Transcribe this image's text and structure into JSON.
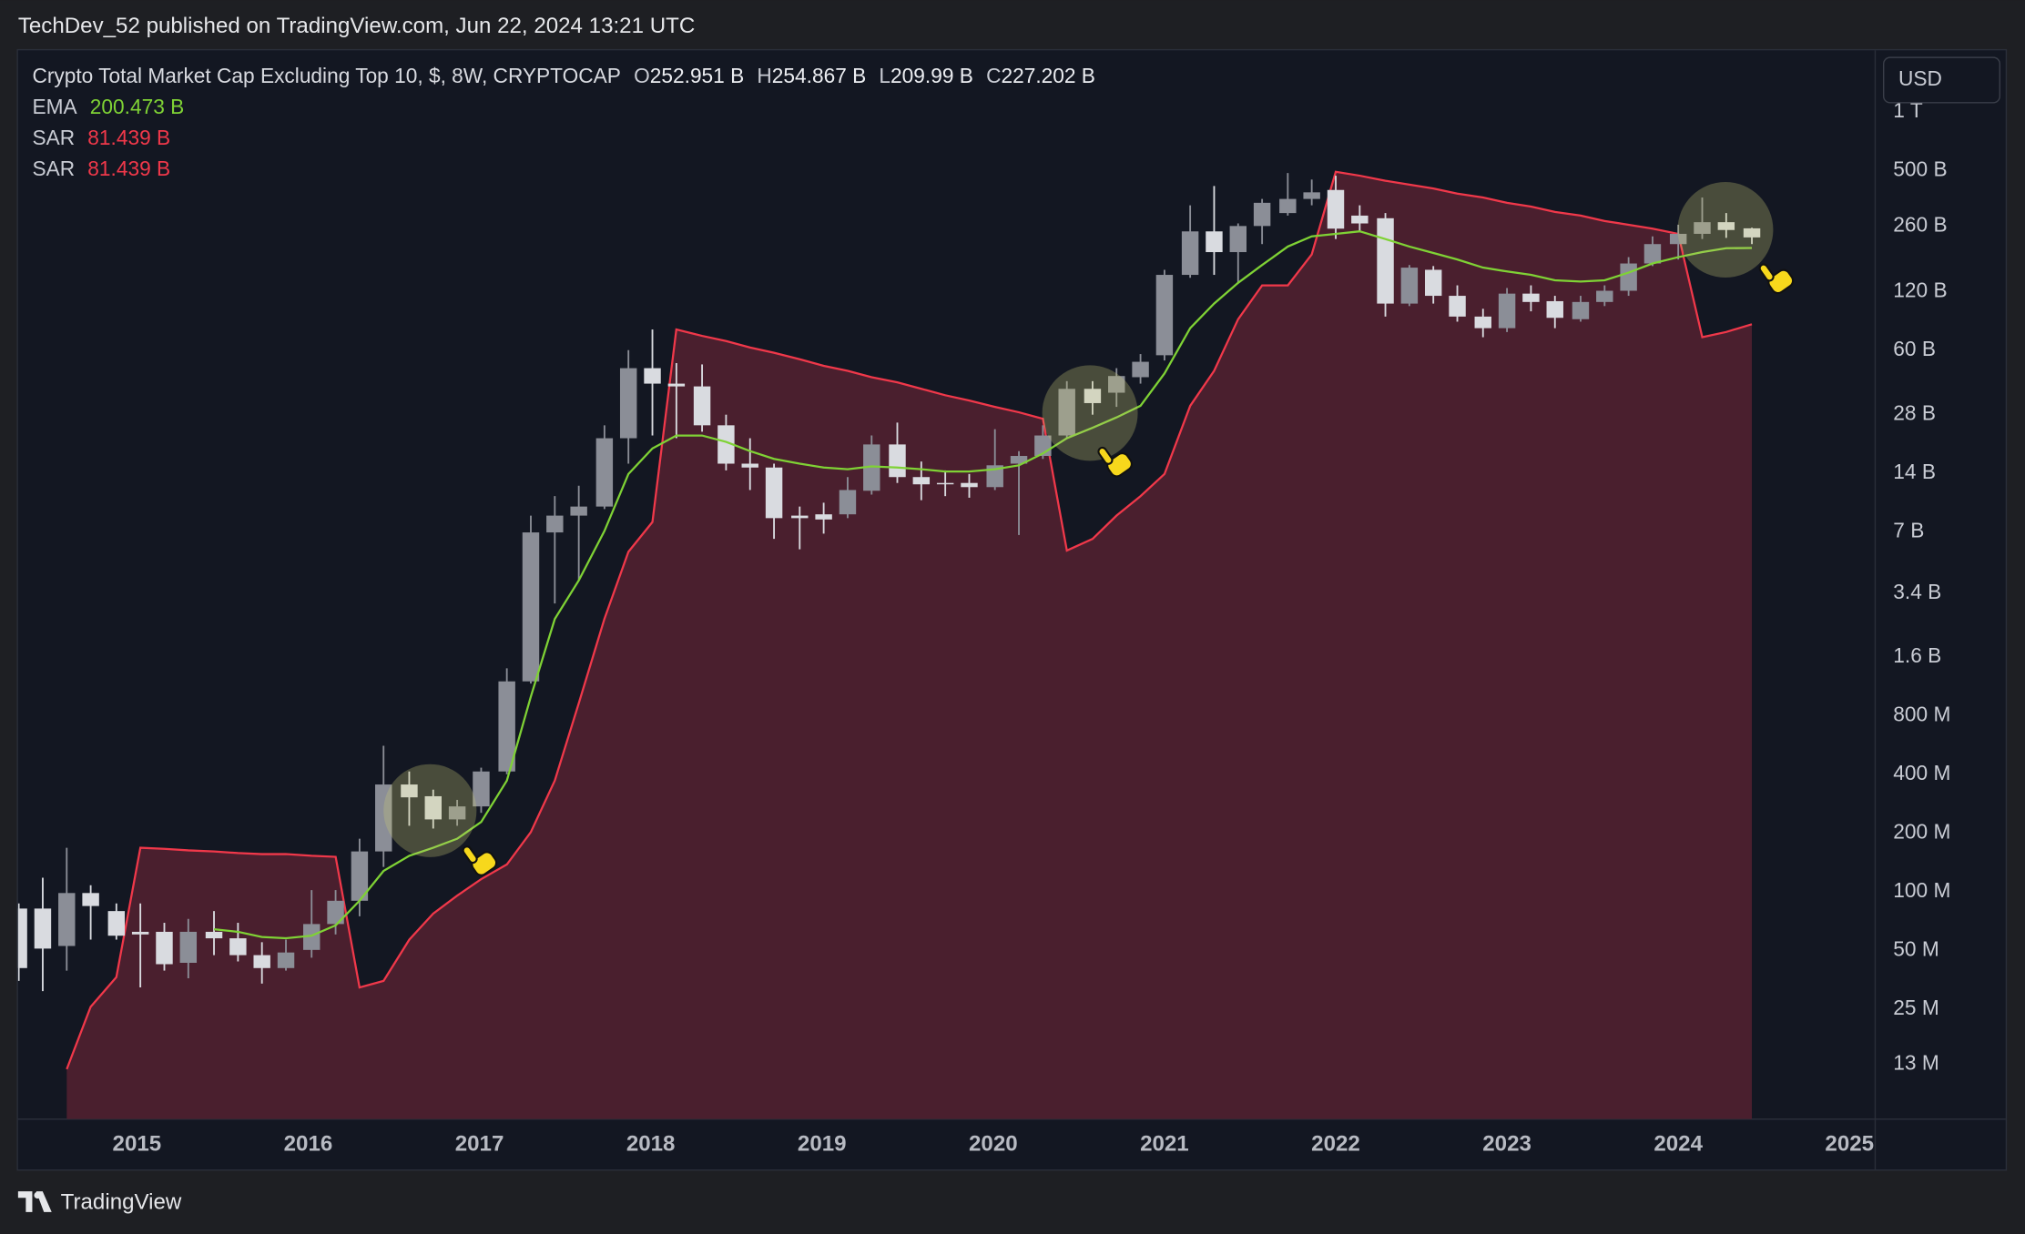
{
  "header": {
    "byline": "TechDev_52 published on TradingView.com, Jun 22, 2024 13:21 UTC",
    "brand": "TradingView"
  },
  "chart_data": {
    "type": "candlestick",
    "title": "Crypto Total Market Cap Excluding Top 10, $, 8W, CRYPTOCAP",
    "currency": "USD",
    "ohlc_keys": [
      "O",
      "H",
      "L",
      "C"
    ],
    "ohlc_value_labels": [
      "252.951 B",
      "254.867 B",
      "209.99 B",
      "227.202 B"
    ],
    "x": [
      2014.31,
      2014.45,
      2014.59,
      2014.73,
      2014.88,
      2015.02,
      2015.16,
      2015.3,
      2015.45,
      2015.59,
      2015.73,
      2015.87,
      2016.02,
      2016.16,
      2016.3,
      2016.44,
      2016.59,
      2016.73,
      2016.87,
      2017.01,
      2017.16,
      2017.3,
      2017.44,
      2017.58,
      2017.73,
      2017.87,
      2018.01,
      2018.15,
      2018.3,
      2018.44,
      2018.58,
      2018.72,
      2018.87,
      2019.01,
      2019.15,
      2019.29,
      2019.44,
      2019.58,
      2019.72,
      2019.86,
      2020.01,
      2020.15,
      2020.29,
      2020.43,
      2020.58,
      2020.72,
      2020.86,
      2021.0,
      2021.15,
      2021.29,
      2021.43,
      2021.57,
      2021.72,
      2021.86,
      2022.0,
      2022.14,
      2022.29,
      2022.43,
      2022.57,
      2022.71,
      2022.86,
      2023.0,
      2023.14,
      2023.28,
      2023.43,
      2023.57,
      2023.71,
      2023.85,
      2024.0,
      2024.14,
      2024.28,
      2024.43
    ],
    "open": [
      82000000.0,
      82000000.0,
      52700000.0,
      98500000.0,
      79600000.0,
      62300000.0,
      62300000.0,
      43200000.0,
      62300000.0,
      57700000.0,
      47300000.0,
      40600000.0,
      50300000.0,
      68300000.0,
      89900000.0,
      161000000.0,
      355000000.0,
      309000000.0,
      235000000.0,
      274000000.0,
      414000000.0,
      1200000000.0,
      6970000000.0,
      8500000000.0,
      9460000000.0,
      21200000000.0,
      48500000000.0,
      40400000000.0,
      39100000000.0,
      24700000000.0,
      15700000000.0,
      15000000000.0,
      8500000000.0,
      8630000000.0,
      8630000000.0,
      11400000000.0,
      19700000000.0,
      13400000000.0,
      12500000000.0,
      12500000000.0,
      11900000000.0,
      15700000000.0,
      17200000000.0,
      21900000000.0,
      38000000000.0,
      36300000000.0,
      43600000000.0,
      56500000000.0,
      146000000000.0,
      244000000000.0,
      191000000000.0,
      260000000000.0,
      303000000000.0,
      358000000000.0,
      398000000000.0,
      294000000000.0,
      285000000000.0,
      104000000000.0,
      155000000000.0,
      114000000000.0,
      89200000000.0,
      77800000000.0,
      117000000000.0,
      107000000000.0,
      86500000000.0,
      106000000000.0,
      121000000000.0,
      167000000000.0,
      210000000000.0,
      237000000000.0,
      272000000000.0,
      252951000000.0
    ],
    "high": [
      87100000.0,
      118000000.0,
      168000000.0,
      108000000.0,
      87100000.0,
      87100000.0,
      69300000.0,
      72600000.0,
      79600000.0,
      69300000.0,
      55100000.0,
      56800000.0,
      102000000.0,
      102000000.0,
      187000000.0,
      561000000.0,
      414000000.0,
      334000000.0,
      296000000.0,
      433000000.0,
      1400000000.0,
      8500000000.0,
      10700000000.0,
      12100000000.0,
      24700000000.0,
      60000000000.0,
      76600000000.0,
      51500000000.0,
      50700000000.0,
      28000000000.0,
      21200000000.0,
      15700000000.0,
      9460000000.0,
      9900000000.0,
      13400000000.0,
      21900000000.0,
      25500000000.0,
      16100000000.0,
      14500000000.0,
      13900000000.0,
      23600000000.0,
      18200000000.0,
      24700000000.0,
      41600000000.0,
      41600000000.0,
      48500000000.0,
      57300000000.0,
      155000000000.0,
      332000000000.0,
      417000000000.0,
      268000000000.0,
      358000000000.0,
      486000000000.0,
      450000000000.0,
      471000000000.0,
      332000000000.0,
      303000000000.0,
      164000000000.0,
      162000000000.0,
      129000000000.0,
      97800000000.0,
      125000000000.0,
      129000000000.0,
      114000000000.0,
      114000000000.0,
      129000000000.0,
      180000000000.0,
      230000000000.0,
      264000000000.0,
      364000000000.0,
      303000000000.0,
      254867000000.0
    ],
    "low": [
      34900000.0,
      30900000.0,
      39400000.0,
      56800000.0,
      56800000.0,
      32300000.0,
      39400000.0,
      36000000.0,
      47300000.0,
      43900000.0,
      33800000.0,
      39400000.0,
      45900000.0,
      60400000.0,
      74800000.0,
      134000000.0,
      218000000.0,
      211000000.0,
      218000000.0,
      254000000.0,
      401000000.0,
      1170000000.0,
      3010000000.0,
      3960000000.0,
      9180000000.0,
      15700000000.0,
      21900000000.0,
      21200000000.0,
      22900000000.0,
      14500000000.0,
      11500000000.0,
      6460000000.0,
      5710000000.0,
      6870000000.0,
      8250000000.0,
      10900000000.0,
      12500000000.0,
      10200000000.0,
      10700000000.0,
      10500000000.0,
      11500000000.0,
      6760000000.0,
      16600000000.0,
      21200000000.0,
      28000000000.0,
      30700000000.0,
      40400000000.0,
      53100000000.0,
      141000000000.0,
      146000000000.0,
      133000000000.0,
      210000000000.0,
      294000000000.0,
      332000000000.0,
      223000000000.0,
      244000000000.0,
      89200000000.0,
      101000000000.0,
      104000000000.0,
      84000000000.0,
      69900000000.0,
      74300000000.0,
      94900000000.0,
      77800000000.0,
      84000000000.0,
      101000000000.0,
      114000000000.0,
      162000000000.0,
      175000000000.0,
      223000000000.0,
      226000000000.0,
      209990000000.0
    ],
    "close": [
      40600000.0,
      51100000.0,
      98500000.0,
      84500000.0,
      59500000.0,
      60400000.0,
      42500000.0,
      62300000.0,
      57700000.0,
      47300000.0,
      40600000.0,
      48800000.0,
      68300000.0,
      89900000.0,
      161000000.0,
      355000000.0,
      305000000.0,
      235000000.0,
      274000000.0,
      414000000.0,
      1200000000.0,
      6970000000.0,
      8500000000.0,
      9460000000.0,
      21200000000.0,
      48500000000.0,
      40400000000.0,
      39100000000.0,
      24700000000.0,
      15700000000.0,
      15000000000.0,
      8250000000.0,
      8250000000.0,
      8120000000.0,
      11500000000.0,
      19700000000.0,
      13400000000.0,
      12300000000.0,
      12300000000.0,
      11900000000.0,
      15400000000.0,
      17200000000.0,
      21900000000.0,
      38000000000.0,
      32100000000.0,
      44200000000.0,
      52300000000.0,
      146000000000.0,
      244000000000.0,
      191000000000.0,
      260000000000.0,
      342000000000.0,
      358000000000.0,
      387000000000.0,
      252000000000.0,
      268000000000.0,
      104000000000.0,
      159000000000.0,
      114000000000.0,
      89200000000.0,
      77800000000.0,
      117000000000.0,
      106000000000.0,
      87900000000.0,
      106000000000.0,
      121000000000.0,
      167000000000.0,
      210000000000.0,
      237000000000.0,
      272000000000.0,
      248000000000.0,
      227202000000.0
    ],
    "up_color": "#8b8e97",
    "down_color": "#d9dbe0",
    "overlays": [
      {
        "name": "EMA",
        "type": "line",
        "color": "#7fd235",
        "value_label": "200.473 B",
        "values": [
          null,
          null,
          null,
          null,
          null,
          null,
          null,
          null,
          64200000.0,
          62300000.0,
          58600000.0,
          57700000.0,
          59500000.0,
          67200000.0,
          89900000.0,
          128000000.0,
          153000000.0,
          168000000.0,
          187000000.0,
          228000000.0,
          372000000.0,
          1000000000.0,
          2510000000.0,
          3960000000.0,
          7080000000.0,
          13900000000.0,
          18800000000.0,
          21900000000.0,
          21900000000.0,
          20300000000.0,
          18200000000.0,
          16600000000.0,
          15700000000.0,
          15000000000.0,
          14700000000.0,
          15200000000.0,
          15000000000.0,
          14700000000.0,
          14300000000.0,
          14300000000.0,
          14700000000.0,
          15400000000.0,
          17700000000.0,
          21200000000.0,
          24000000000.0,
          27100000000.0,
          31100000000.0,
          45600000000.0,
          77800000000.0,
          104000000000.0,
          133000000000.0,
          164000000000.0,
          204000000000.0,
          230000000000.0,
          237000000000.0,
          244000000000.0,
          223000000000.0,
          204000000000.0,
          189000000000.0,
          175000000000.0,
          159000000000.0,
          152000000000.0,
          146000000000.0,
          137000000000.0,
          135000000000.0,
          137000000000.0,
          150000000000.0,
          167000000000.0,
          180000000000.0,
          191000000000.0,
          200000000000.0,
          200473000000.0
        ]
      },
      {
        "name": "SAR",
        "type": "area",
        "color": "#f0384a",
        "fill": "#4a1f2e",
        "value_label": "81.439 B",
        "values": [
          null,
          null,
          12300000.0,
          25700000.0,
          36500000.0,
          168000000.0,
          166000000.0,
          163000000.0,
          161000000.0,
          158000000.0,
          156000000.0,
          156000000.0,
          153000000.0,
          151000000.0,
          32300000.0,
          34900000.0,
          56800000.0,
          77200000.0,
          95500000.0,
          116000000.0,
          138000000.0,
          202000000.0,
          372000000.0,
          929000000.0,
          2510000000.0,
          5540000000.0,
          7880000000.0,
          76600000000.0,
          71000000000.0,
          66800000000.0,
          61900000000.0,
          58200000000.0,
          53900000000.0,
          49900000000.0,
          47000000000.0,
          43600000000.0,
          41000000000.0,
          38000000000.0,
          35200000000.0,
          33100000000.0,
          30700000000.0,
          28800000000.0,
          26700000000.0,
          5630000000.0,
          6460000000.0,
          8500000000.0,
          10700000000.0,
          13900000000.0,
          31100000000.0,
          47000000000.0,
          86500000000.0,
          129000000000.0,
          129000000000.0,
          186000000000.0,
          493000000000.0,
          471000000000.0,
          444000000000.0,
          424000000000.0,
          405000000000.0,
          381000000000.0,
          364000000000.0,
          342000000000.0,
          327000000000.0,
          307000000000.0,
          294000000000.0,
          276000000000.0,
          264000000000.0,
          252000000000.0,
          237000000000.0,
          69900000000.0,
          74300000000.0,
          81439000000.0
        ]
      }
    ],
    "xlim": [
      2014.306,
      2025.15
    ],
    "xticks": [
      2015,
      2016,
      2017,
      2018,
      2019,
      2020,
      2021,
      2022,
      2023,
      2024,
      2025
    ],
    "ylim": [
      6820000.0,
      2070000000000.0
    ],
    "yticks": [
      {
        "value": 1000000000000.0,
        "label": "1 T"
      },
      {
        "value": 500000000000.0,
        "label": "500 B"
      },
      {
        "value": 260000000000.0,
        "label": "260 B"
      },
      {
        "value": 120000000000.0,
        "label": "120 B"
      },
      {
        "value": 60000000000.0,
        "label": "60 B"
      },
      {
        "value": 28000000000.0,
        "label": "28 B"
      },
      {
        "value": 14000000000.0,
        "label": "14 B"
      },
      {
        "value": 7000000000.0,
        "label": "7 B"
      },
      {
        "value": 3400000000.0,
        "label": "3.4 B"
      },
      {
        "value": 1600000000.0,
        "label": "1.6 B"
      },
      {
        "value": 800000000.0,
        "label": "800 M"
      },
      {
        "value": 400000000.0,
        "label": "400 M"
      },
      {
        "value": 200000000.0,
        "label": "200 M"
      },
      {
        "value": 100000000.0,
        "label": "100 M"
      },
      {
        "value": 50000000.0,
        "label": "50 M"
      },
      {
        "value": 25000000.0,
        "label": "25 M"
      },
      {
        "value": 13000000.0,
        "label": "13 M"
      }
    ],
    "log_scale": true,
    "grid": false
  }
}
